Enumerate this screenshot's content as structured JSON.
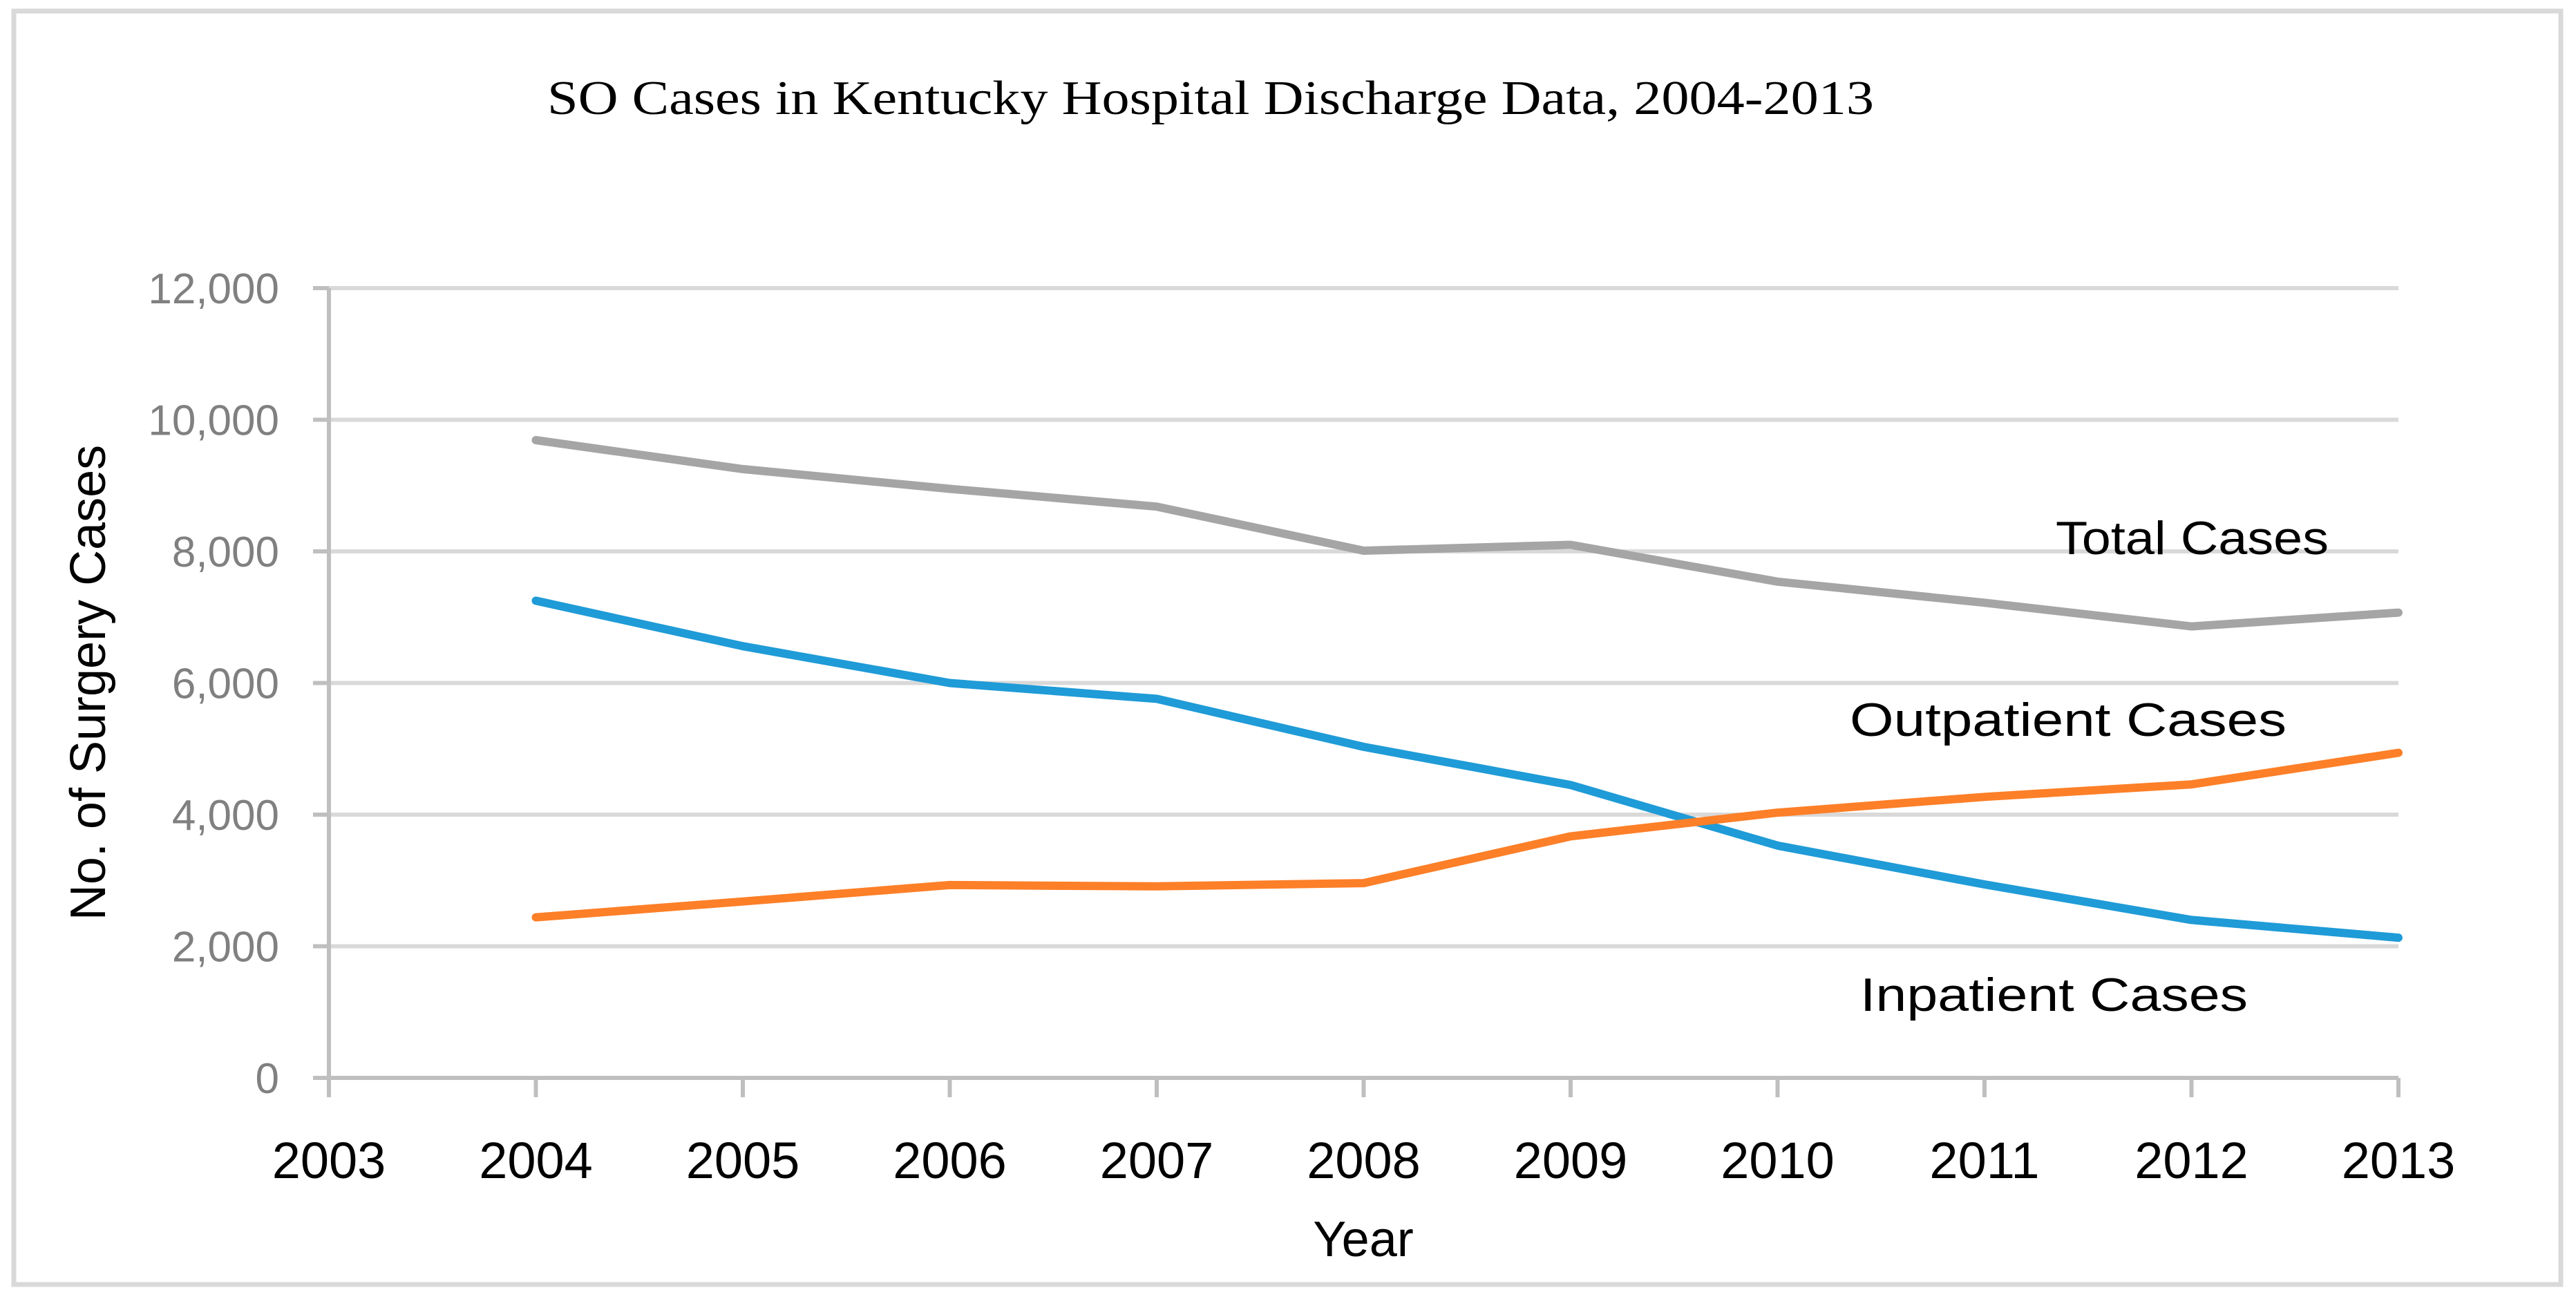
{
  "chart_data": {
    "type": "line",
    "title": "SO Cases in Kentucky Hospital Discharge Data, 2004-2013",
    "xlabel": "Year",
    "ylabel": "No. of Surgery Cases",
    "x_ticks": [
      "2003",
      "2004",
      "2005",
      "2006",
      "2007",
      "2008",
      "2009",
      "2010",
      "2011",
      "2012",
      "2013"
    ],
    "xlim": [
      2003,
      2013
    ],
    "y_ticks": [
      "0",
      "2,000",
      "4,000",
      "6,000",
      "8,000",
      "10,000",
      "12,000"
    ],
    "y_tick_values": [
      0,
      2000,
      4000,
      6000,
      8000,
      10000,
      12000
    ],
    "ylim": [
      0,
      12000
    ],
    "grid": "horizontal",
    "legend": "inline labels at right",
    "x": [
      2004,
      2005,
      2006,
      2007,
      2008,
      2009,
      2010,
      2011,
      2012,
      2013
    ],
    "series": [
      {
        "name": "Total Cases",
        "color": "#a5a5a5",
        "values": [
          9690,
          9250,
          8950,
          8680,
          8010,
          8100,
          7540,
          7220,
          6860,
          7070
        ]
      },
      {
        "name": "Inpatient Cases",
        "color": "#1f9bd7",
        "values": [
          7250,
          6560,
          6000,
          5760,
          5030,
          4450,
          3530,
          2940,
          2400,
          2130
        ]
      },
      {
        "name": "Outpatient Cases",
        "color": "#fd7f28",
        "values": [
          2440,
          2680,
          2930,
          2910,
          2960,
          3670,
          4030,
          4270,
          4460,
          4940
        ]
      }
    ],
    "annotations": [
      "Total Cases",
      "Outpatient Cases",
      "Inpatient Cases"
    ]
  },
  "colors": {
    "frame": "#d9d9d9",
    "gridline": "#d9d9d9",
    "axis": "#bfbfbf",
    "tick_label": "#808080"
  }
}
